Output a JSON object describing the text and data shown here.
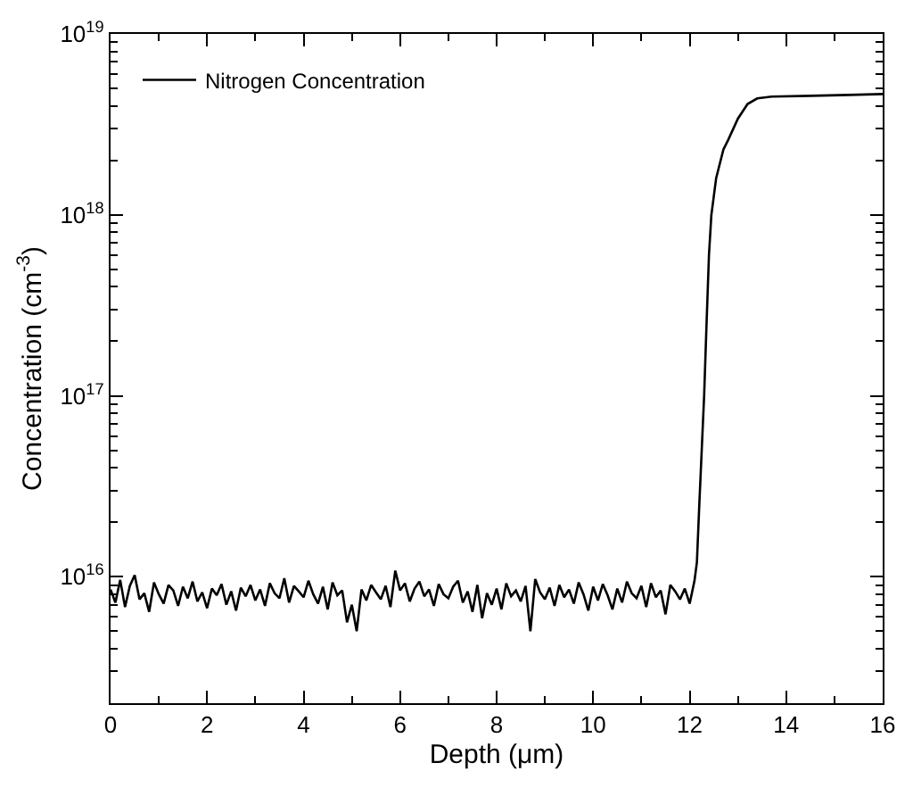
{
  "chart_data": {
    "type": "line",
    "xlabel": "Depth (μm)",
    "ylabel": "Concentration (cm$^{-3}$)",
    "log": "y",
    "legend": "top left",
    "marker": "none",
    "line_style": "solid",
    "xlim": [
      0,
      16
    ],
    "ylim": [
      2000000000000000.0,
      1e+19
    ],
    "xticks": [
      0,
      {
        "value": 1,
        "label": null
      },
      2,
      {
        "value": 3,
        "label": null
      },
      4,
      {
        "value": 5,
        "label": null
      },
      6,
      {
        "value": 7,
        "label": null
      },
      8,
      {
        "value": 9,
        "label": null
      },
      10,
      {
        "value": 11,
        "label": null
      },
      12,
      {
        "value": 13,
        "label": null
      },
      14,
      {
        "value": 15,
        "label": null
      },
      16
    ],
    "yticks": [
      {
        "value": 3000000000000000.0,
        "label": null
      },
      {
        "value": 4000000000000000.0,
        "label": null
      },
      {
        "value": 5000000000000000.0,
        "label": null
      },
      {
        "value": 6000000000000000.0,
        "label": null
      },
      {
        "value": 7000000000000000.0,
        "label": null
      },
      {
        "value": 8000000000000000.0,
        "label": null
      },
      {
        "value": 9000000000000000.0,
        "label": null
      },
      {
        "value": 1e+16,
        "label": "10$^{16}$"
      },
      {
        "value": 2e+16,
        "label": null
      },
      {
        "value": 3e+16,
        "label": null
      },
      {
        "value": 4e+16,
        "label": null
      },
      {
        "value": 5e+16,
        "label": null
      },
      {
        "value": 6e+16,
        "label": null
      },
      {
        "value": 7e+16,
        "label": null
      },
      {
        "value": 8e+16,
        "label": null
      },
      {
        "value": 9e+16,
        "label": null
      },
      {
        "value": 1e+17,
        "label": "10$^{17}$"
      },
      {
        "value": 2e+17,
        "label": null
      },
      {
        "value": 3e+17,
        "label": null
      },
      {
        "value": 4e+17,
        "label": null
      },
      {
        "value": 5e+17,
        "label": null
      },
      {
        "value": 6e+17,
        "label": null
      },
      {
        "value": 7e+17,
        "label": null
      },
      {
        "value": 8e+17,
        "label": null
      },
      {
        "value": 9e+17,
        "label": null
      },
      {
        "value": 1e+18,
        "label": "10$^{18}$"
      },
      {
        "value": 2e+18,
        "label": null
      },
      {
        "value": 3e+18,
        "label": null
      },
      {
        "value": 4e+18,
        "label": null
      },
      {
        "value": 5e+18,
        "label": null
      },
      {
        "value": 6e+18,
        "label": null
      },
      {
        "value": 7e+18,
        "label": null
      },
      {
        "value": 8e+18,
        "label": null
      },
      {
        "value": 9e+18,
        "label": null
      },
      {
        "value": 1e+19,
        "label": "10$^{19}$"
      }
    ],
    "series": [
      {
        "name": "Nitrogen Concentration",
        "color": "#000000",
        "x": [
          0.0,
          0.1,
          0.2,
          0.3,
          0.4,
          0.5,
          0.6,
          0.7,
          0.8,
          0.9,
          1.0,
          1.1,
          1.2,
          1.3,
          1.4,
          1.5,
          1.6,
          1.7,
          1.8,
          1.9,
          2.0,
          2.1,
          2.2,
          2.3,
          2.4,
          2.5,
          2.6,
          2.7,
          2.8,
          2.9,
          3.0,
          3.1,
          3.2,
          3.3,
          3.4,
          3.5,
          3.6,
          3.7,
          3.8,
          3.9,
          4.0,
          4.1,
          4.2,
          4.3,
          4.4,
          4.5,
          4.6,
          4.7,
          4.8,
          4.9,
          5.0,
          5.1,
          5.2,
          5.3,
          5.4,
          5.5,
          5.6,
          5.7,
          5.8,
          5.9,
          6.0,
          6.1,
          6.2,
          6.3,
          6.4,
          6.5,
          6.6,
          6.7,
          6.8,
          6.9,
          7.0,
          7.1,
          7.2,
          7.3,
          7.4,
          7.5,
          7.6,
          7.7,
          7.8,
          7.9,
          8.0,
          8.1,
          8.2,
          8.3,
          8.4,
          8.5,
          8.6,
          8.7,
          8.8,
          8.9,
          9.0,
          9.1,
          9.2,
          9.3,
          9.4,
          9.5,
          9.6,
          9.7,
          9.8,
          9.9,
          10.0,
          10.1,
          10.2,
          10.3,
          10.4,
          10.5,
          10.6,
          10.7,
          10.8,
          10.9,
          11.0,
          11.1,
          11.2,
          11.3,
          11.4,
          11.5,
          11.6,
          11.7,
          11.8,
          11.9,
          12.0,
          12.1,
          12.15,
          12.2,
          12.25,
          12.3,
          12.35,
          12.4,
          12.45,
          12.55,
          12.7,
          12.8,
          13.0,
          13.2,
          13.4,
          13.7,
          14.5,
          15.3,
          16.0
        ],
        "values": [
          8500000000000000.0,
          7200000000000000.0,
          9600000000000000.0,
          6800000000000000.0,
          8900000000000000.0,
          1.02e+16,
          7500000000000000.0,
          8100000000000000.0,
          6400000000000000.0,
          9300000000000000.0,
          8000000000000000.0,
          7100000000000000.0,
          9000000000000000.0,
          8400000000000000.0,
          6900000000000000.0,
          8800000000000000.0,
          7600000000000000.0,
          9400000000000000.0,
          7300000000000000.0,
          8200000000000000.0,
          6700000000000000.0,
          8600000000000000.0,
          7900000000000000.0,
          9100000000000000.0,
          7000000000000000.0,
          8300000000000000.0,
          6500000000000000.0,
          8700000000000000.0,
          7800000000000000.0,
          9000000000000000.0,
          7400000000000000.0,
          8500000000000000.0,
          6900000000000000.0,
          9200000000000000.0,
          8100000000000000.0,
          7600000000000000.0,
          9800000000000000.0,
          7200000000000000.0,
          8900000000000000.0,
          8300000000000000.0,
          7700000000000000.0,
          9500000000000000.0,
          8000000000000000.0,
          7100000000000000.0,
          8800000000000000.0,
          6600000000000000.0,
          9300000000000000.0,
          7900000000000000.0,
          8400000000000000.0,
          5600000000000000.0,
          7000000000000000.0,
          5000000000000000.0,
          8500000000000000.0,
          7400000000000000.0,
          9000000000000000.0,
          8200000000000000.0,
          7500000000000000.0,
          8900000000000000.0,
          6800000000000000.0,
          1.08e+16,
          8400000000000000.0,
          9200000000000000.0,
          7300000000000000.0,
          8600000000000000.0,
          9400000000000000.0,
          7800000000000000.0,
          8500000000000000.0,
          6900000000000000.0,
          9100000000000000.0,
          8000000000000000.0,
          7600000000000000.0,
          8800000000000000.0,
          9500000000000000.0,
          7200000000000000.0,
          8300000000000000.0,
          6400000000000000.0,
          9000000000000000.0,
          5900000000000000.0,
          8100000000000000.0,
          7000000000000000.0,
          8600000000000000.0,
          6600000000000000.0,
          9200000000000000.0,
          7800000000000000.0,
          8400000000000000.0,
          7300000000000000.0,
          8900000000000000.0,
          5000000000000000.0,
          9700000000000000.0,
          8200000000000000.0,
          7500000000000000.0,
          8700000000000000.0,
          6900000000000000.0,
          9000000000000000.0,
          7700000000000000.0,
          8500000000000000.0,
          7100000000000000.0,
          9300000000000000.0,
          8000000000000000.0,
          6500000000000000.0,
          8800000000000000.0,
          7400000000000000.0,
          9100000000000000.0,
          7900000000000000.0,
          6600000000000000.0,
          8600000000000000.0,
          7200000000000000.0,
          9400000000000000.0,
          8100000000000000.0,
          7600000000000000.0,
          8900000000000000.0,
          6800000000000000.0,
          9200000000000000.0,
          7700000000000000.0,
          8400000000000000.0,
          6200000000000000.0,
          9000000000000000.0,
          8300000000000000.0,
          7500000000000000.0,
          8600000000000000.0,
          7100000000000000.0,
          9500000000000000.0,
          1.2e+16,
          2.5e+16,
          5e+16,
          1e+17,
          2.5e+17,
          6e+17,
          1e+18,
          1.6e+18,
          2.3e+18,
          2.6e+18,
          3.4e+18,
          4.1e+18,
          4.4e+18,
          4.5e+18,
          4.55e+18,
          4.6e+18,
          4.65e+18
        ]
      }
    ]
  }
}
